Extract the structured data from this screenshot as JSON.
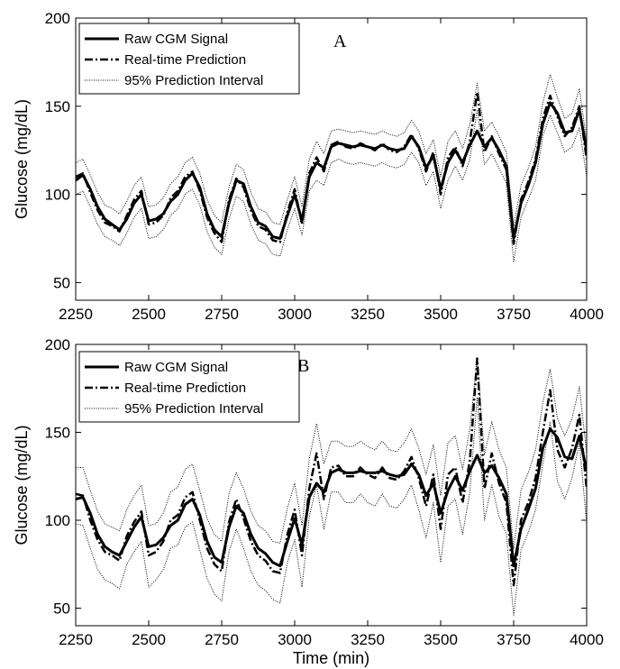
{
  "chart_data": [
    {
      "type": "line",
      "panel_label": "A",
      "xlabel": "",
      "ylabel": "Glucose (mg/dL)",
      "xlim": [
        2250,
        4000
      ],
      "ylim": [
        40,
        200
      ],
      "xticks": [
        2250,
        2500,
        2750,
        3000,
        3250,
        3500,
        3750,
        4000
      ],
      "yticks": [
        50,
        100,
        150,
        200
      ],
      "grid": false,
      "legend_position": "top-left",
      "legend": [
        "Raw CGM Signal",
        "Real-time Prediction",
        "95% Prediction Interval"
      ],
      "x": [
        2250,
        2275,
        2300,
        2325,
        2350,
        2375,
        2400,
        2425,
        2450,
        2475,
        2500,
        2525,
        2550,
        2575,
        2600,
        2625,
        2650,
        2675,
        2700,
        2725,
        2750,
        2775,
        2800,
        2825,
        2850,
        2875,
        2900,
        2925,
        2950,
        2975,
        3000,
        3025,
        3050,
        3075,
        3100,
        3125,
        3150,
        3175,
        3200,
        3225,
        3250,
        3275,
        3300,
        3325,
        3350,
        3375,
        3400,
        3425,
        3450,
        3475,
        3500,
        3525,
        3550,
        3575,
        3600,
        3625,
        3650,
        3675,
        3700,
        3725,
        3750,
        3775,
        3800,
        3825,
        3850,
        3875,
        3900,
        3925,
        3950,
        3975,
        4000
      ],
      "series": [
        {
          "name": "Raw CGM Signal",
          "style": "solid",
          "values": [
            108,
            111,
            103,
            93,
            86,
            83,
            80,
            86,
            95,
            100,
            85,
            86,
            89,
            96,
            100,
            108,
            112,
            104,
            89,
            80,
            76,
            95,
            108,
            106,
            93,
            84,
            82,
            76,
            75,
            88,
            100,
            85,
            110,
            118,
            115,
            127,
            129,
            128,
            127,
            128,
            127,
            126,
            128,
            126,
            125,
            126,
            133,
            127,
            115,
            122,
            103,
            118,
            125,
            118,
            128,
            136,
            127,
            132,
            125,
            116,
            75,
            95,
            105,
            118,
            140,
            152,
            146,
            135,
            136,
            148,
            125
          ]
        },
        {
          "name": "Real-time Prediction",
          "style": "dash-dot",
          "values": [
            110,
            112,
            101,
            91,
            84,
            82,
            79,
            88,
            97,
            102,
            83,
            84,
            88,
            98,
            102,
            110,
            113,
            102,
            87,
            78,
            73,
            97,
            109,
            104,
            91,
            82,
            80,
            74,
            73,
            90,
            103,
            83,
            112,
            121,
            113,
            128,
            130,
            127,
            126,
            129,
            127,
            125,
            129,
            125,
            124,
            127,
            134,
            126,
            113,
            124,
            100,
            121,
            127,
            116,
            130,
            158,
            124,
            133,
            123,
            114,
            72,
            97,
            107,
            120,
            143,
            156,
            144,
            133,
            138,
            150,
            120
          ]
        },
        {
          "name": "95% Prediction Interval upper",
          "style": "dotted",
          "values": [
            118,
            120,
            111,
            101,
            94,
            92,
            89,
            96,
            105,
            110,
            93,
            94,
            98,
            106,
            110,
            118,
            121,
            112,
            97,
            88,
            84,
            104,
            117,
            114,
            101,
            92,
            90,
            84,
            83,
            97,
            110,
            93,
            120,
            130,
            123,
            136,
            137,
            136,
            135,
            136,
            135,
            134,
            136,
            134,
            133,
            135,
            142,
            136,
            123,
            131,
            110,
            130,
            136,
            126,
            140,
            163,
            136,
            141,
            133,
            124,
            82,
            105,
            115,
            127,
            152,
            168,
            155,
            143,
            146,
            160,
            130
          ]
        },
        {
          "name": "95% Prediction Interval lower",
          "style": "dotted",
          "values": [
            100,
            102,
            93,
            83,
            76,
            74,
            71,
            78,
            87,
            92,
            75,
            76,
            80,
            88,
            92,
            100,
            103,
            94,
            79,
            70,
            66,
            86,
            99,
            96,
            83,
            74,
            72,
            66,
            65,
            80,
            92,
            77,
            102,
            108,
            105,
            118,
            120,
            118,
            117,
            118,
            117,
            116,
            118,
            116,
            115,
            117,
            124,
            118,
            105,
            113,
            92,
            108,
            116,
            108,
            120,
            148,
            117,
            123,
            115,
            106,
            62,
            87,
            97,
            108,
            133,
            145,
            135,
            124,
            127,
            138,
            110
          ]
        }
      ]
    },
    {
      "type": "line",
      "panel_label": "B",
      "xlabel": "Time (min)",
      "ylabel": "Glucose (mg/dL)",
      "xlim": [
        2250,
        4000
      ],
      "ylim": [
        40,
        200
      ],
      "xticks": [
        2250,
        2500,
        2750,
        3000,
        3250,
        3500,
        3750,
        4000
      ],
      "yticks": [
        50,
        100,
        150,
        200
      ],
      "grid": false,
      "legend_position": "top-left",
      "legend": [
        "Raw CGM Signal",
        "Real-time Prediction",
        "95% Prediction Interval"
      ],
      "x": [
        2250,
        2275,
        2300,
        2325,
        2350,
        2375,
        2400,
        2425,
        2450,
        2475,
        2500,
        2525,
        2550,
        2575,
        2600,
        2625,
        2650,
        2675,
        2700,
        2725,
        2750,
        2775,
        2800,
        2825,
        2850,
        2875,
        2900,
        2925,
        2950,
        2975,
        3000,
        3025,
        3050,
        3075,
        3100,
        3125,
        3150,
        3175,
        3200,
        3225,
        3250,
        3275,
        3300,
        3325,
        3350,
        3375,
        3400,
        3425,
        3450,
        3475,
        3500,
        3525,
        3550,
        3575,
        3600,
        3625,
        3650,
        3675,
        3700,
        3725,
        3750,
        3775,
        3800,
        3825,
        3850,
        3875,
        3900,
        3925,
        3950,
        3975,
        4000
      ],
      "series": [
        {
          "name": "Raw CGM Signal",
          "style": "solid",
          "values": [
            112,
            113,
            104,
            92,
            85,
            82,
            80,
            88,
            96,
            102,
            85,
            86,
            90,
            97,
            100,
            109,
            112,
            103,
            88,
            79,
            76,
            96,
            108,
            104,
            92,
            84,
            81,
            76,
            74,
            88,
            101,
            86,
            113,
            121,
            116,
            127,
            129,
            127,
            127,
            128,
            127,
            127,
            128,
            126,
            125,
            126,
            132,
            126,
            114,
            121,
            104,
            117,
            125,
            117,
            128,
            137,
            127,
            131,
            124,
            115,
            74,
            95,
            106,
            118,
            141,
            152,
            147,
            136,
            135,
            148,
            128
          ]
        },
        {
          "name": "Real-time Prediction",
          "style": "dash-dot",
          "values": [
            115,
            114,
            100,
            89,
            82,
            80,
            77,
            91,
            99,
            105,
            80,
            82,
            88,
            100,
            103,
            113,
            116,
            100,
            84,
            75,
            71,
            99,
            112,
            101,
            88,
            80,
            77,
            71,
            70,
            92,
            106,
            80,
            118,
            138,
            112,
            130,
            131,
            125,
            125,
            130,
            126,
            124,
            130,
            124,
            123,
            128,
            136,
            124,
            108,
            126,
            95,
            126,
            130,
            110,
            134,
            192,
            118,
            138,
            121,
            110,
            63,
            100,
            110,
            124,
            150,
            174,
            140,
            130,
            141,
            160,
            118
          ]
        },
        {
          "name": "95% Prediction Interval upper",
          "style": "dotted",
          "values": [
            130,
            130,
            117,
            105,
            98,
            96,
            94,
            106,
            114,
            120,
            97,
            98,
            104,
            116,
            119,
            129,
            132,
            117,
            101,
            92,
            88,
            115,
            127,
            118,
            105,
            97,
            94,
            88,
            87,
            107,
            121,
            97,
            135,
            155,
            132,
            145,
            145,
            142,
            142,
            145,
            142,
            140,
            145,
            140,
            139,
            144,
            152,
            141,
            126,
            143,
            114,
            144,
            148,
            129,
            152,
            192,
            137,
            156,
            140,
            130,
            84,
            117,
            127,
            140,
            167,
            186,
            158,
            148,
            158,
            176,
            138
          ]
        },
        {
          "name": "95% Prediction Interval lower",
          "style": "dotted",
          "values": [
            98,
            97,
            84,
            72,
            66,
            64,
            61,
            75,
            82,
            88,
            62,
            66,
            72,
            84,
            86,
            96,
            99,
            83,
            67,
            58,
            54,
            82,
            95,
            84,
            71,
            63,
            60,
            55,
            53,
            76,
            89,
            62,
            102,
            120,
            95,
            116,
            116,
            110,
            110,
            115,
            110,
            108,
            115,
            108,
            107,
            112,
            120,
            106,
            90,
            110,
            76,
            108,
            112,
            92,
            116,
            170,
            100,
            120,
            102,
            92,
            46,
            83,
            93,
            106,
            132,
            156,
            122,
            112,
            124,
            144,
            98
          ]
        }
      ]
    }
  ]
}
